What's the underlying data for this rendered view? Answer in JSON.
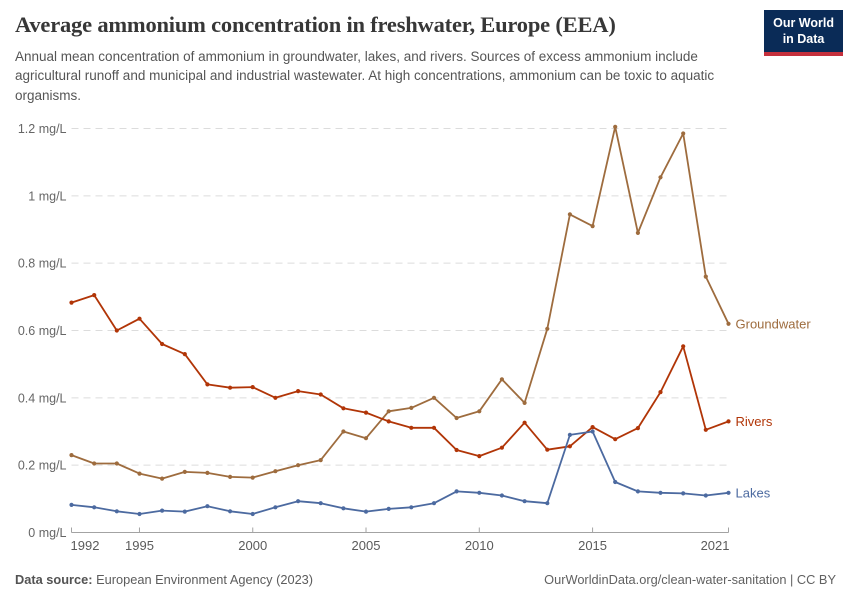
{
  "header": {
    "title": "Average ammonium concentration in freshwater, Europe (EEA)",
    "subtitle": "Annual mean concentration of ammonium in groundwater, lakes, and rivers. Sources of excess ammonium include agricultural runoff and municipal and industrial wastewater. At high concentrations, ammonium can be toxic to aquatic organisms.",
    "logo": {
      "line1": "Our World",
      "line2": "in Data",
      "bg_color": "#0a2b57",
      "stripe_color": "#c5303c"
    }
  },
  "footer": {
    "source_label": "Data source:",
    "source_value": " European Environment Agency (2023)",
    "credit": "OurWorldinData.org/clean-water-sanitation | CC BY"
  },
  "chart_data": {
    "type": "line",
    "title": "Average ammonium concentration in freshwater, Europe (EEA)",
    "xlabel": "",
    "ylabel": "mg/L",
    "xlim": [
      1992,
      2021
    ],
    "ylim": [
      0,
      1.2
    ],
    "grid": "horizontal-dashed",
    "legend_position": "end-of-line-labels",
    "x": [
      1992,
      1993,
      1994,
      1995,
      1996,
      1997,
      1998,
      1999,
      2000,
      2001,
      2002,
      2003,
      2004,
      2005,
      2006,
      2007,
      2008,
      2009,
      2010,
      2011,
      2012,
      2013,
      2014,
      2015,
      2016,
      2017,
      2018,
      2019,
      2020,
      2021
    ],
    "xticks": [
      1992,
      1995,
      2000,
      2005,
      2010,
      2015,
      2021
    ],
    "yticks": [
      0,
      0.2,
      0.4,
      0.6,
      0.8,
      1,
      1.2
    ],
    "ytick_labels": [
      "0 mg/L",
      "0.2 mg/L",
      "0.4 mg/L",
      "0.6 mg/L",
      "0.8 mg/L",
      "1 mg/L",
      "1.2 mg/L"
    ],
    "series": [
      {
        "name": "Groundwater",
        "color": "#9e6c3e",
        "values": [
          0.23,
          0.205,
          0.205,
          0.175,
          0.16,
          0.18,
          0.177,
          0.165,
          0.163,
          0.182,
          0.2,
          0.215,
          0.3,
          0.28,
          0.36,
          0.37,
          0.4,
          0.34,
          0.36,
          0.455,
          0.385,
          0.605,
          0.945,
          0.91,
          1.205,
          0.89,
          1.055,
          1.185,
          0.76,
          0.62
        ]
      },
      {
        "name": "Rivers",
        "color": "#b13507",
        "values": [
          0.683,
          0.705,
          0.6,
          0.635,
          0.56,
          0.53,
          0.44,
          0.43,
          0.432,
          0.4,
          0.42,
          0.41,
          0.369,
          0.356,
          0.33,
          0.311,
          0.311,
          0.245,
          0.227,
          0.252,
          0.326,
          0.246,
          0.256,
          0.313,
          0.277,
          0.31,
          0.417,
          0.553,
          0.305,
          0.33
        ]
      },
      {
        "name": "Lakes",
        "color": "#4c6aa0",
        "values": [
          0.082,
          0.075,
          0.063,
          0.055,
          0.065,
          0.062,
          0.078,
          0.063,
          0.055,
          0.075,
          0.093,
          0.087,
          0.072,
          0.062,
          0.07,
          0.075,
          0.087,
          0.122,
          0.118,
          0.11,
          0.093,
          0.087,
          0.29,
          0.3,
          0.15,
          0.122,
          0.118,
          0.116,
          0.11,
          0.118
        ]
      }
    ],
    "style": {
      "grid_color": "#dcdcdc",
      "axis_color": "#a3a3a3",
      "tick_label_color": "#666666",
      "x_label_color": "#5b5b5b"
    }
  }
}
